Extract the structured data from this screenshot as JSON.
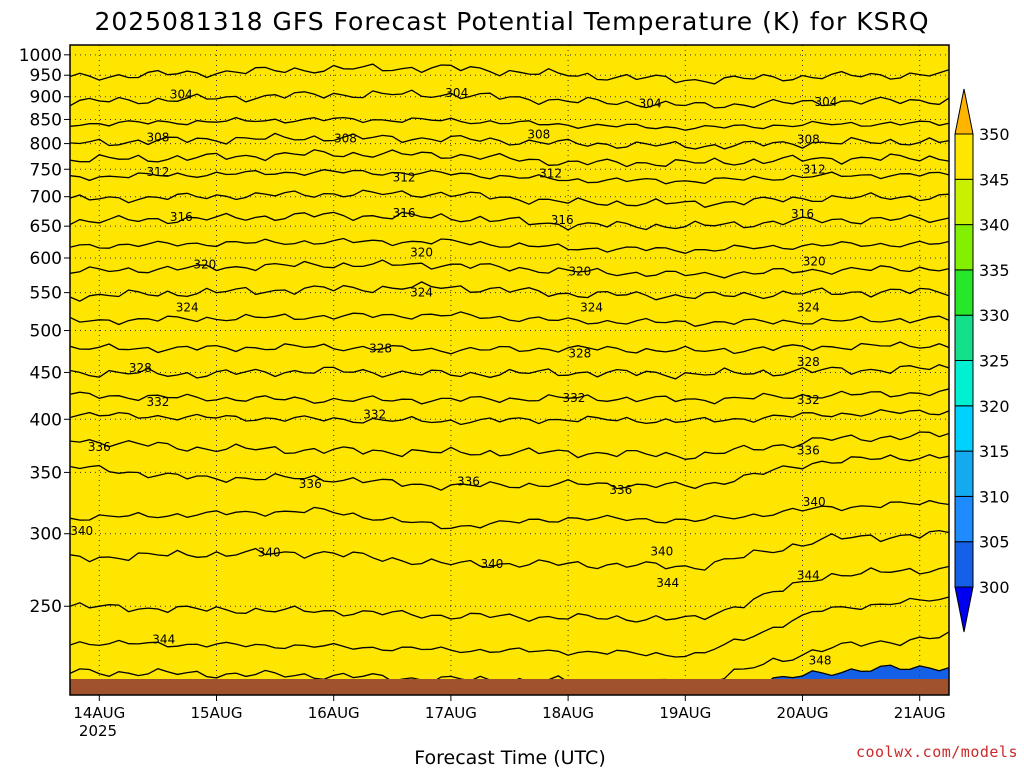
{
  "chart_data": {
    "type": "heatmap",
    "title": "2025081318 GFS Forecast Potential Temperature (K) for KSRQ",
    "xlabel": "Forecast Time (UTC)",
    "ylabel": "",
    "x_ticks": [
      "14AUG",
      "15AUG",
      "16AUG",
      "17AUG",
      "18AUG",
      "19AUG",
      "20AUG",
      "21AUG"
    ],
    "x_year_label": "2025",
    "y_ticks": [
      250,
      300,
      350,
      400,
      450,
      500,
      550,
      600,
      650,
      700,
      750,
      800,
      850,
      900,
      950,
      1000
    ],
    "y_scale": "log",
    "y_range": [
      1025,
      200
    ],
    "x_range_days": [
      0,
      7.5
    ],
    "grid": true,
    "colorbar": {
      "levels": [
        300,
        305,
        310,
        315,
        320,
        325,
        330,
        335,
        340,
        345,
        350
      ],
      "tick_labels": [
        "300",
        "305",
        "310",
        "315",
        "320",
        "325",
        "330",
        "335",
        "340",
        "345",
        "350"
      ],
      "colors": [
        "#0000f0",
        "#1460e6",
        "#1e8cff",
        "#14aaf0",
        "#00d2ff",
        "#00f0d2",
        "#14e08c",
        "#28e628",
        "#82f000",
        "#c8f000",
        "#ffe600",
        "#ffb400"
      ],
      "extend": "both"
    },
    "contour_interval": 2,
    "isentropes": [
      {
        "theta": 348,
        "values": [
          205,
          204,
          203,
          202,
          201,
          200,
          212,
          215
        ]
      },
      {
        "theta": 346,
        "values": [
          212,
          211,
          210,
          208,
          207,
          206,
          225,
          232
        ]
      },
      {
        "theta": 344,
        "values": [
          228,
          227,
          226,
          224,
          223,
          221,
          248,
          255
        ]
      },
      {
        "theta": 342,
        "values": [
          250,
          248,
          247,
          244,
          243,
          242,
          270,
          275
        ]
      },
      {
        "theta": 340,
        "values": [
          282,
          285,
          286,
          278,
          278,
          276,
          296,
          300
        ]
      },
      {
        "theta": 338,
        "values": [
          312,
          315,
          318,
          305,
          312,
          310,
          320,
          325
        ]
      },
      {
        "theta": 336,
        "values": [
          355,
          345,
          345,
          338,
          340,
          338,
          360,
          365
        ]
      },
      {
        "theta": 334,
        "values": [
          380,
          372,
          370,
          368,
          368,
          365,
          380,
          385
        ]
      },
      {
        "theta": 332,
        "values": [
          405,
          402,
          400,
          398,
          400,
          398,
          405,
          408
        ]
      },
      {
        "theta": 330,
        "values": [
          425,
          422,
          420,
          420,
          422,
          420,
          425,
          428
        ]
      },
      {
        "theta": 328,
        "values": [
          450,
          448,
          452,
          448,
          450,
          448,
          452,
          455
        ]
      },
      {
        "theta": 326,
        "values": [
          478,
          478,
          480,
          476,
          478,
          475,
          480,
          482
        ]
      },
      {
        "theta": 324,
        "values": [
          512,
          515,
          518,
          520,
          512,
          510,
          512,
          515
        ]
      },
      {
        "theta": 322,
        "values": [
          545,
          550,
          555,
          558,
          548,
          545,
          550,
          552
        ]
      },
      {
        "theta": 320,
        "values": [
          580,
          585,
          590,
          590,
          580,
          575,
          582,
          585
        ]
      },
      {
        "theta": 318,
        "values": [
          618,
          622,
          625,
          625,
          615,
          612,
          620,
          622
        ]
      },
      {
        "theta": 316,
        "values": [
          658,
          662,
          668,
          665,
          652,
          650,
          660,
          662
        ]
      },
      {
        "theta": 314,
        "values": [
          695,
          700,
          705,
          705,
          690,
          688,
          698,
          700
        ]
      },
      {
        "theta": 312,
        "values": [
          735,
          740,
          745,
          742,
          730,
          728,
          738,
          740
        ]
      },
      {
        "theta": 310,
        "values": [
          768,
          772,
          780,
          778,
          762,
          762,
          770,
          772
        ]
      },
      {
        "theta": 308,
        "values": [
          800,
          808,
          812,
          810,
          800,
          795,
          802,
          805
        ]
      },
      {
        "theta": 306,
        "values": [
          840,
          845,
          850,
          848,
          838,
          832,
          840,
          842
        ]
      },
      {
        "theta": 304,
        "values": [
          888,
          895,
          905,
          905,
          890,
          880,
          888,
          892
        ]
      },
      {
        "theta": 302,
        "values": [
          945,
          955,
          965,
          968,
          950,
          938,
          948,
          952
        ]
      }
    ],
    "contour_labels": [
      {
        "text": "344",
        "day": 0.8,
        "p": 230
      },
      {
        "text": "340",
        "day": 1.7,
        "p": 286
      },
      {
        "text": "340",
        "day": 0.1,
        "p": 302
      },
      {
        "text": "336",
        "day": 2.05,
        "p": 340
      },
      {
        "text": "336",
        "day": 0.25,
        "p": 373
      },
      {
        "text": "332",
        "day": 0.75,
        "p": 418
      },
      {
        "text": "328",
        "day": 0.6,
        "p": 455
      },
      {
        "text": "324",
        "day": 1.0,
        "p": 530
      },
      {
        "text": "320",
        "day": 1.15,
        "p": 590
      },
      {
        "text": "316",
        "day": 0.95,
        "p": 665
      },
      {
        "text": "312",
        "day": 0.75,
        "p": 745
      },
      {
        "text": "308",
        "day": 0.75,
        "p": 812
      },
      {
        "text": "304",
        "day": 0.95,
        "p": 905
      },
      {
        "text": "340",
        "day": 3.6,
        "p": 278
      },
      {
        "text": "336",
        "day": 3.4,
        "p": 342
      },
      {
        "text": "332",
        "day": 2.6,
        "p": 405
      },
      {
        "text": "328",
        "day": 2.65,
        "p": 478
      },
      {
        "text": "324",
        "day": 3.0,
        "p": 550
      },
      {
        "text": "320",
        "day": 3.0,
        "p": 608
      },
      {
        "text": "316",
        "day": 2.85,
        "p": 672
      },
      {
        "text": "312",
        "day": 2.85,
        "p": 735
      },
      {
        "text": "308",
        "day": 2.35,
        "p": 810
      },
      {
        "text": "304",
        "day": 3.3,
        "p": 908
      },
      {
        "text": "336",
        "day": 4.7,
        "p": 335
      },
      {
        "text": "332",
        "day": 4.3,
        "p": 422
      },
      {
        "text": "328",
        "day": 4.35,
        "p": 472
      },
      {
        "text": "324",
        "day": 4.45,
        "p": 530
      },
      {
        "text": "320",
        "day": 4.35,
        "p": 580
      },
      {
        "text": "316",
        "day": 4.2,
        "p": 660
      },
      {
        "text": "312",
        "day": 4.1,
        "p": 742
      },
      {
        "text": "308",
        "day": 4.0,
        "p": 818
      },
      {
        "text": "304",
        "day": 4.95,
        "p": 885
      },
      {
        "text": "344",
        "day": 5.1,
        "p": 265
      },
      {
        "text": "340",
        "day": 5.05,
        "p": 287
      },
      {
        "text": "348",
        "day": 6.4,
        "p": 218
      },
      {
        "text": "344",
        "day": 6.3,
        "p": 270
      },
      {
        "text": "340",
        "day": 6.35,
        "p": 325
      },
      {
        "text": "336",
        "day": 6.3,
        "p": 370
      },
      {
        "text": "332",
        "day": 6.3,
        "p": 420
      },
      {
        "text": "328",
        "day": 6.3,
        "p": 462
      },
      {
        "text": "324",
        "day": 6.3,
        "p": 530
      },
      {
        "text": "320",
        "day": 6.35,
        "p": 595
      },
      {
        "text": "316",
        "day": 6.25,
        "p": 670
      },
      {
        "text": "312",
        "day": 6.35,
        "p": 750
      },
      {
        "text": "308",
        "day": 6.3,
        "p": 808
      },
      {
        "text": "304",
        "day": 6.45,
        "p": 888
      }
    ],
    "surface_pressure": 1000
  },
  "credit": "coolwx.com/models"
}
